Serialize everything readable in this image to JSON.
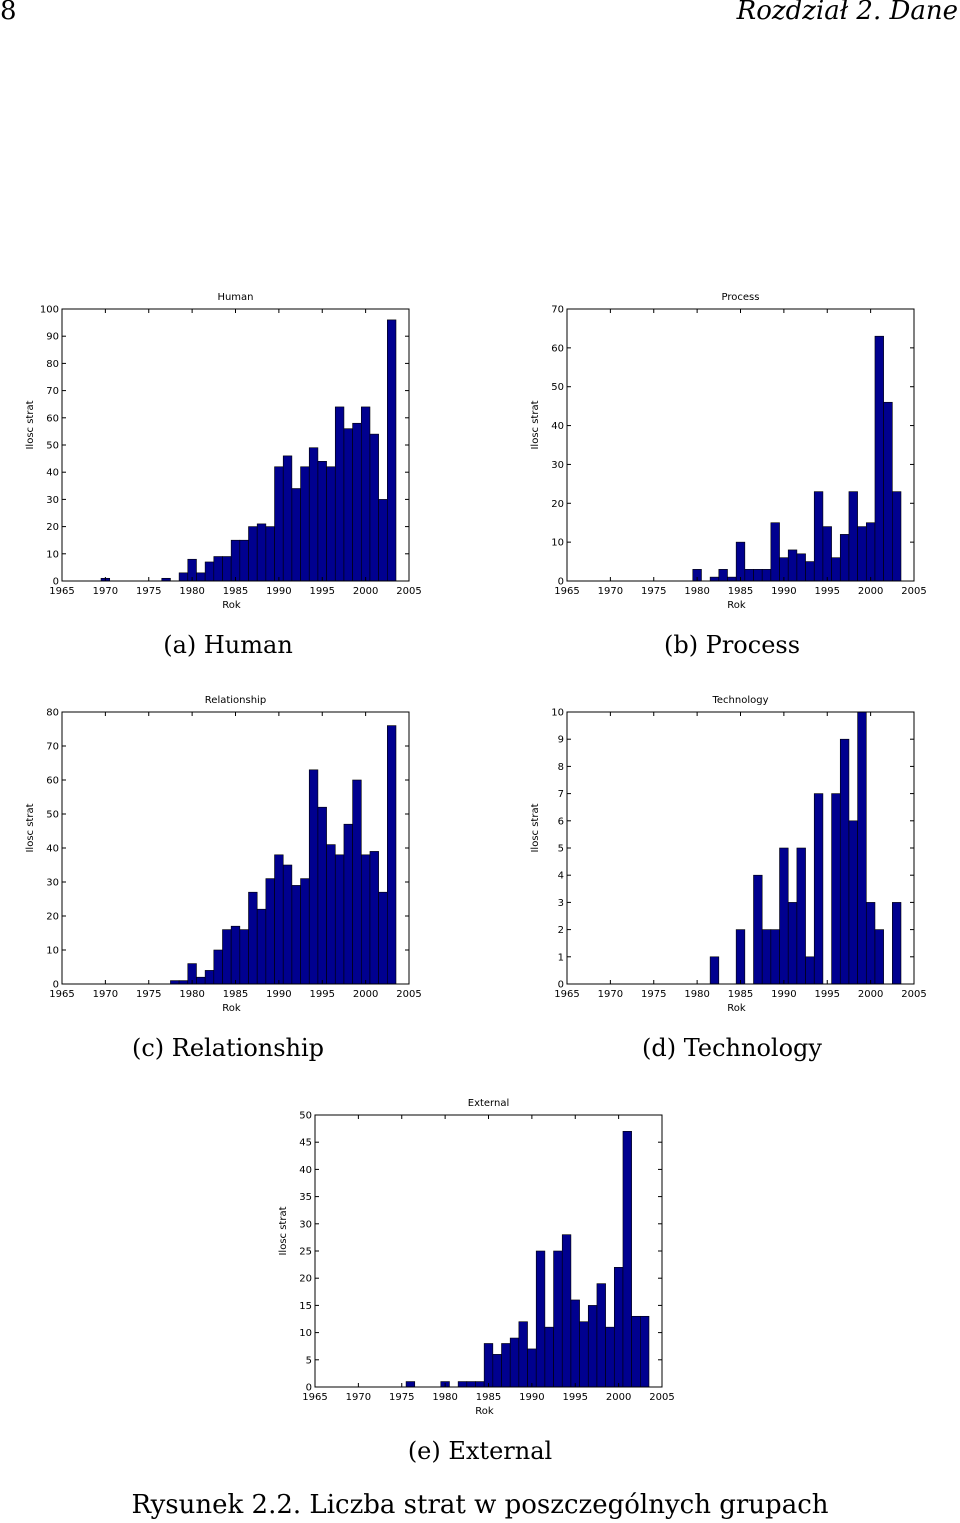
{
  "header": {
    "page_number": "8",
    "running_title": "Rozdział 2. Dane"
  },
  "figure_caption": "Rysunek 2.2. Liczba strat w poszczególnych grupach",
  "colors": {
    "bar_fill": "#00008f",
    "bar_edge": "#000000"
  },
  "subfigure_labels": [
    "(a) Human",
    "(b) Process",
    "(c) Relationship",
    "(d) Technology",
    "(e) External"
  ],
  "chart_data": [
    {
      "type": "bar",
      "title": "Human",
      "xlabel": "Rok",
      "ylabel": "Ilosc strat",
      "xlim": [
        1965,
        2005
      ],
      "ylim": [
        0,
        100
      ],
      "xticks": [
        1965,
        1970,
        1975,
        1980,
        1985,
        1990,
        1995,
        2000,
        2005
      ],
      "yticks": [
        0,
        10,
        20,
        30,
        40,
        50,
        60,
        70,
        80,
        90,
        100
      ],
      "x": [
        1965,
        1966,
        1967,
        1968,
        1969,
        1970,
        1971,
        1972,
        1973,
        1974,
        1975,
        1976,
        1977,
        1978,
        1979,
        1980,
        1981,
        1982,
        1983,
        1984,
        1985,
        1986,
        1987,
        1988,
        1989,
        1990,
        1991,
        1992,
        1993,
        1994,
        1995,
        1996,
        1997,
        1998,
        1999,
        2000,
        2001,
        2002,
        2003
      ],
      "values": [
        0,
        0,
        0,
        0,
        0,
        1,
        0,
        0,
        0,
        0,
        0,
        0,
        1,
        0,
        3,
        8,
        3,
        7,
        9,
        9,
        15,
        15,
        20,
        21,
        20,
        42,
        46,
        34,
        42,
        49,
        44,
        42,
        64,
        56,
        58,
        64,
        54,
        30,
        96
      ]
    },
    {
      "type": "bar",
      "title": "Process",
      "xlabel": "Rok",
      "ylabel": "Ilosc strat",
      "xlim": [
        1965,
        2005
      ],
      "ylim": [
        0,
        70
      ],
      "xticks": [
        1965,
        1970,
        1975,
        1980,
        1985,
        1990,
        1995,
        2000,
        2005
      ],
      "yticks": [
        0,
        10,
        20,
        30,
        40,
        50,
        60,
        70
      ],
      "x": [
        1965,
        1966,
        1967,
        1968,
        1969,
        1970,
        1971,
        1972,
        1973,
        1974,
        1975,
        1976,
        1977,
        1978,
        1979,
        1980,
        1981,
        1982,
        1983,
        1984,
        1985,
        1986,
        1987,
        1988,
        1989,
        1990,
        1991,
        1992,
        1993,
        1994,
        1995,
        1996,
        1997,
        1998,
        1999,
        2000,
        2001,
        2002,
        2003
      ],
      "values": [
        0,
        0,
        0,
        0,
        0,
        0,
        0,
        0,
        0,
        0,
        0,
        0,
        0,
        0,
        0,
        3,
        0,
        1,
        3,
        1,
        10,
        3,
        3,
        3,
        15,
        6,
        8,
        7,
        5,
        23,
        14,
        6,
        12,
        23,
        14,
        15,
        63,
        46,
        23
      ]
    },
    {
      "type": "bar",
      "title": "Relationship",
      "xlabel": "Rok",
      "ylabel": "Ilosc strat",
      "xlim": [
        1965,
        2005
      ],
      "ylim": [
        0,
        80
      ],
      "xticks": [
        1965,
        1970,
        1975,
        1980,
        1985,
        1990,
        1995,
        2000,
        2005
      ],
      "yticks": [
        0,
        10,
        20,
        30,
        40,
        50,
        60,
        70,
        80
      ],
      "x": [
        1965,
        1966,
        1967,
        1968,
        1969,
        1970,
        1971,
        1972,
        1973,
        1974,
        1975,
        1976,
        1977,
        1978,
        1979,
        1980,
        1981,
        1982,
        1983,
        1984,
        1985,
        1986,
        1987,
        1988,
        1989,
        1990,
        1991,
        1992,
        1993,
        1994,
        1995,
        1996,
        1997,
        1998,
        1999,
        2000,
        2001,
        2002,
        2003
      ],
      "values": [
        0,
        0,
        0,
        0,
        0,
        0,
        0,
        0,
        0,
        0,
        0,
        0,
        0,
        1,
        1,
        6,
        2,
        4,
        10,
        16,
        17,
        16,
        27,
        22,
        31,
        38,
        35,
        29,
        31,
        63,
        52,
        41,
        38,
        47,
        60,
        38,
        39,
        27,
        76
      ]
    },
    {
      "type": "bar",
      "title": "Technology",
      "xlabel": "Rok",
      "ylabel": "Ilosc strat",
      "xlim": [
        1965,
        2005
      ],
      "ylim": [
        0,
        10
      ],
      "xticks": [
        1965,
        1970,
        1975,
        1980,
        1985,
        1990,
        1995,
        2000,
        2005
      ],
      "yticks": [
        0,
        1,
        2,
        3,
        4,
        5,
        6,
        7,
        8,
        9,
        10
      ],
      "x": [
        1965,
        1966,
        1967,
        1968,
        1969,
        1970,
        1971,
        1972,
        1973,
        1974,
        1975,
        1976,
        1977,
        1978,
        1979,
        1980,
        1981,
        1982,
        1983,
        1984,
        1985,
        1986,
        1987,
        1988,
        1989,
        1990,
        1991,
        1992,
        1993,
        1994,
        1995,
        1996,
        1997,
        1998,
        1999,
        2000,
        2001,
        2002,
        2003
      ],
      "values": [
        0,
        0,
        0,
        0,
        0,
        0,
        0,
        0,
        0,
        0,
        0,
        0,
        0,
        0,
        0,
        0,
        0,
        1,
        0,
        0,
        2,
        0,
        4,
        2,
        2,
        5,
        3,
        5,
        1,
        7,
        0,
        7,
        9,
        6,
        10,
        3,
        2,
        0,
        3
      ]
    },
    {
      "type": "bar",
      "title": "External",
      "xlabel": "Rok",
      "ylabel": "Ilosc strat",
      "xlim": [
        1965,
        2005
      ],
      "ylim": [
        0,
        50
      ],
      "xticks": [
        1965,
        1970,
        1975,
        1980,
        1985,
        1990,
        1995,
        2000,
        2005
      ],
      "yticks": [
        0,
        5,
        10,
        15,
        20,
        25,
        30,
        35,
        40,
        45,
        50
      ],
      "x": [
        1965,
        1966,
        1967,
        1968,
        1969,
        1970,
        1971,
        1972,
        1973,
        1974,
        1975,
        1976,
        1977,
        1978,
        1979,
        1980,
        1981,
        1982,
        1983,
        1984,
        1985,
        1986,
        1987,
        1988,
        1989,
        1990,
        1991,
        1992,
        1993,
        1994,
        1995,
        1996,
        1997,
        1998,
        1999,
        2000,
        2001,
        2002,
        2003
      ],
      "values": [
        0,
        0,
        0,
        0,
        0,
        0,
        0,
        0,
        0,
        0,
        0,
        1,
        0,
        0,
        0,
        1,
        0,
        1,
        1,
        1,
        8,
        6,
        8,
        9,
        12,
        7,
        25,
        11,
        25,
        28,
        16,
        12,
        15,
        19,
        11,
        22,
        47,
        13,
        13
      ]
    }
  ]
}
